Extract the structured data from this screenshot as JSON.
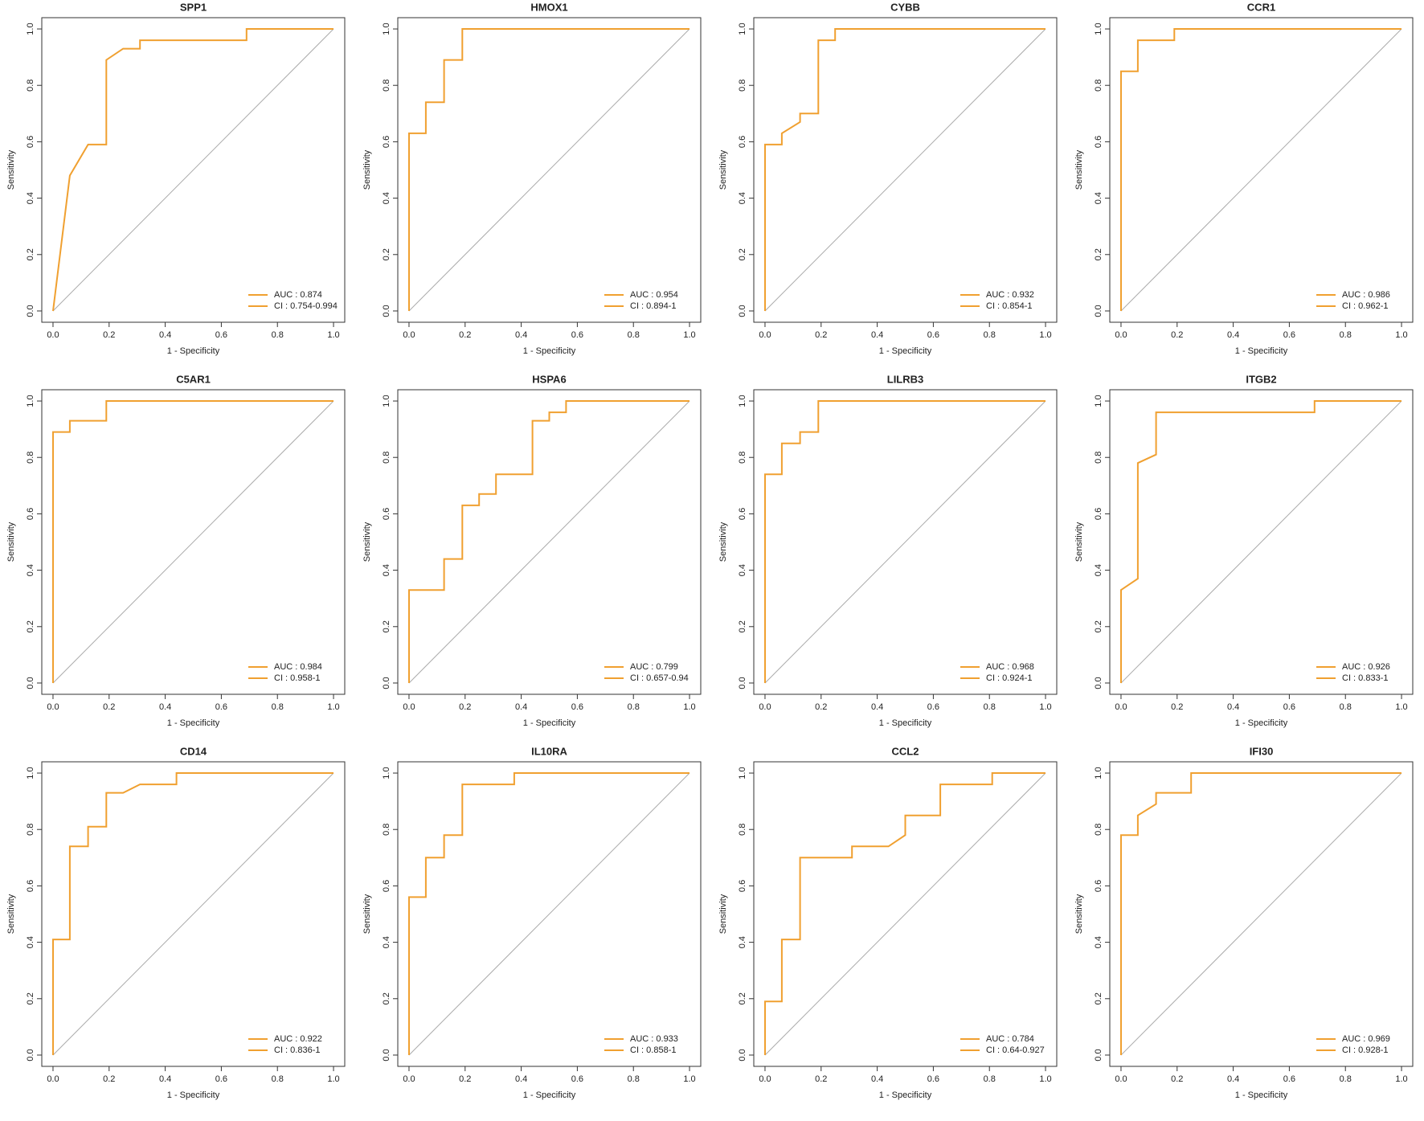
{
  "chart_data": [
    {
      "type": "line",
      "title": "SPP1",
      "xlabel": "1 - Specificity",
      "ylabel": "Sensitivity",
      "color": "#f0a030",
      "legend": [
        "AUC : 0.874",
        "CI : 0.754-0.994"
      ],
      "x": [
        0,
        0.06,
        0.125,
        0.19,
        0.19,
        0.25,
        0.31,
        0.31,
        0.69,
        0.69,
        1
      ],
      "values": [
        0,
        0.48,
        0.59,
        0.59,
        0.89,
        0.93,
        0.93,
        0.96,
        0.96,
        1,
        1
      ],
      "xlim": [
        -0.04,
        1.04
      ],
      "ylim": [
        -0.04,
        1.04
      ],
      "xticks": [
        {
          "value": 0,
          "label": "0.0"
        },
        {
          "value": 0.2,
          "label": "0.2"
        },
        {
          "value": 0.4,
          "label": "0.4"
        },
        {
          "value": 0.6,
          "label": "0.6"
        },
        {
          "value": 0.8,
          "label": "0.8"
        },
        {
          "value": 1,
          "label": "1.0"
        }
      ],
      "yticks": [
        {
          "value": 0,
          "label": "0.0"
        },
        {
          "value": 0.2,
          "label": "0.2"
        },
        {
          "value": 0.4,
          "label": "0.4"
        },
        {
          "value": 0.6,
          "label": "0.6"
        },
        {
          "value": 0.8,
          "label": "0.8"
        },
        {
          "value": 1,
          "label": "1.0"
        }
      ]
    },
    {
      "type": "line",
      "title": "HMOX1",
      "xlabel": "1 - Specificity",
      "ylabel": "Sensitivity",
      "color": "#f0a030",
      "legend": [
        "AUC : 0.954",
        "CI : 0.894-1"
      ],
      "x": [
        0,
        0,
        0.06,
        0.06,
        0.125,
        0.125,
        0.19,
        0.19,
        1
      ],
      "values": [
        0,
        0.63,
        0.63,
        0.74,
        0.74,
        0.89,
        0.89,
        1,
        1
      ],
      "xlim": [
        -0.04,
        1.04
      ],
      "ylim": [
        -0.04,
        1.04
      ],
      "xticks": [
        {
          "value": 0,
          "label": "0.0"
        },
        {
          "value": 0.2,
          "label": "0.2"
        },
        {
          "value": 0.4,
          "label": "0.4"
        },
        {
          "value": 0.6,
          "label": "0.6"
        },
        {
          "value": 0.8,
          "label": "0.8"
        },
        {
          "value": 1,
          "label": "1.0"
        }
      ],
      "yticks": [
        {
          "value": 0,
          "label": "0.0"
        },
        {
          "value": 0.2,
          "label": "0.2"
        },
        {
          "value": 0.4,
          "label": "0.4"
        },
        {
          "value": 0.6,
          "label": "0.6"
        },
        {
          "value": 0.8,
          "label": "0.8"
        },
        {
          "value": 1,
          "label": "1.0"
        }
      ]
    },
    {
      "type": "line",
      "title": "CYBB",
      "xlabel": "1 - Specificity",
      "ylabel": "Sensitivity",
      "color": "#f0a030",
      "legend": [
        "AUC : 0.932",
        "CI : 0.854-1"
      ],
      "x": [
        0,
        0,
        0.06,
        0.06,
        0.125,
        0.125,
        0.19,
        0.19,
        0.25,
        0.25,
        1
      ],
      "values": [
        0,
        0.59,
        0.59,
        0.63,
        0.67,
        0.7,
        0.7,
        0.96,
        0.96,
        1,
        1
      ],
      "xlim": [
        -0.04,
        1.04
      ],
      "ylim": [
        -0.04,
        1.04
      ],
      "xticks": [
        {
          "value": 0,
          "label": "0.0"
        },
        {
          "value": 0.2,
          "label": "0.2"
        },
        {
          "value": 0.4,
          "label": "0.4"
        },
        {
          "value": 0.6,
          "label": "0.6"
        },
        {
          "value": 0.8,
          "label": "0.8"
        },
        {
          "value": 1,
          "label": "1.0"
        }
      ],
      "yticks": [
        {
          "value": 0,
          "label": "0.0"
        },
        {
          "value": 0.2,
          "label": "0.2"
        },
        {
          "value": 0.4,
          "label": "0.4"
        },
        {
          "value": 0.6,
          "label": "0.6"
        },
        {
          "value": 0.8,
          "label": "0.8"
        },
        {
          "value": 1,
          "label": "1.0"
        }
      ]
    },
    {
      "type": "line",
      "title": "CCR1",
      "xlabel": "1 - Specificity",
      "ylabel": "Sensitivity",
      "color": "#f0a030",
      "legend": [
        "AUC : 0.986",
        "CI : 0.962-1"
      ],
      "x": [
        0,
        0,
        0.06,
        0.06,
        0.19,
        0.19,
        1
      ],
      "values": [
        0,
        0.85,
        0.85,
        0.96,
        0.96,
        1,
        1
      ],
      "xlim": [
        -0.04,
        1.04
      ],
      "ylim": [
        -0.04,
        1.04
      ],
      "xticks": [
        {
          "value": 0,
          "label": "0.0"
        },
        {
          "value": 0.2,
          "label": "0.2"
        },
        {
          "value": 0.4,
          "label": "0.4"
        },
        {
          "value": 0.6,
          "label": "0.6"
        },
        {
          "value": 0.8,
          "label": "0.8"
        },
        {
          "value": 1,
          "label": "1.0"
        }
      ],
      "yticks": [
        {
          "value": 0,
          "label": "0.0"
        },
        {
          "value": 0.2,
          "label": "0.2"
        },
        {
          "value": 0.4,
          "label": "0.4"
        },
        {
          "value": 0.6,
          "label": "0.6"
        },
        {
          "value": 0.8,
          "label": "0.8"
        },
        {
          "value": 1,
          "label": "1.0"
        }
      ]
    },
    {
      "type": "line",
      "title": "C5AR1",
      "xlabel": "1 - Specificity",
      "ylabel": "Sensitivity",
      "color": "#f0a030",
      "legend": [
        "AUC : 0.984",
        "CI : 0.958-1"
      ],
      "x": [
        0,
        0,
        0.06,
        0.06,
        0.19,
        0.19,
        1
      ],
      "values": [
        0,
        0.89,
        0.89,
        0.93,
        0.93,
        1,
        1
      ],
      "xlim": [
        -0.04,
        1.04
      ],
      "ylim": [
        -0.04,
        1.04
      ],
      "xticks": [
        {
          "value": 0,
          "label": "0.0"
        },
        {
          "value": 0.2,
          "label": "0.2"
        },
        {
          "value": 0.4,
          "label": "0.4"
        },
        {
          "value": 0.6,
          "label": "0.6"
        },
        {
          "value": 0.8,
          "label": "0.8"
        },
        {
          "value": 1,
          "label": "1.0"
        }
      ],
      "yticks": [
        {
          "value": 0,
          "label": "0.0"
        },
        {
          "value": 0.2,
          "label": "0.2"
        },
        {
          "value": 0.4,
          "label": "0.4"
        },
        {
          "value": 0.6,
          "label": "0.6"
        },
        {
          "value": 0.8,
          "label": "0.8"
        },
        {
          "value": 1,
          "label": "1.0"
        }
      ]
    },
    {
      "type": "line",
      "title": "HSPA6",
      "xlabel": "1 - Specificity",
      "ylabel": "Sensitivity",
      "color": "#f0a030",
      "legend": [
        "AUC : 0.799",
        "CI : 0.657-0.94"
      ],
      "x": [
        0,
        0,
        0.125,
        0.125,
        0.19,
        0.19,
        0.25,
        0.25,
        0.31,
        0.31,
        0.44,
        0.44,
        0.5,
        0.5,
        0.56,
        0.56,
        1
      ],
      "values": [
        0,
        0.33,
        0.33,
        0.44,
        0.44,
        0.63,
        0.63,
        0.67,
        0.67,
        0.74,
        0.74,
        0.93,
        0.93,
        0.96,
        0.96,
        1,
        1
      ],
      "xlim": [
        -0.04,
        1.04
      ],
      "ylim": [
        -0.04,
        1.04
      ],
      "xticks": [
        {
          "value": 0,
          "label": "0.0"
        },
        {
          "value": 0.2,
          "label": "0.2"
        },
        {
          "value": 0.4,
          "label": "0.4"
        },
        {
          "value": 0.6,
          "label": "0.6"
        },
        {
          "value": 0.8,
          "label": "0.8"
        },
        {
          "value": 1,
          "label": "1.0"
        }
      ],
      "yticks": [
        {
          "value": 0,
          "label": "0.0"
        },
        {
          "value": 0.2,
          "label": "0.2"
        },
        {
          "value": 0.4,
          "label": "0.4"
        },
        {
          "value": 0.6,
          "label": "0.6"
        },
        {
          "value": 0.8,
          "label": "0.8"
        },
        {
          "value": 1,
          "label": "1.0"
        }
      ]
    },
    {
      "type": "line",
      "title": "LILRB3",
      "xlabel": "1 - Specificity",
      "ylabel": "Sensitivity",
      "color": "#f0a030",
      "legend": [
        "AUC : 0.968",
        "CI : 0.924-1"
      ],
      "x": [
        0,
        0,
        0.06,
        0.06,
        0.125,
        0.125,
        0.19,
        0.19,
        1
      ],
      "values": [
        0,
        0.74,
        0.74,
        0.85,
        0.85,
        0.89,
        0.89,
        1,
        1
      ],
      "xlim": [
        -0.04,
        1.04
      ],
      "ylim": [
        -0.04,
        1.04
      ],
      "xticks": [
        {
          "value": 0,
          "label": "0.0"
        },
        {
          "value": 0.2,
          "label": "0.2"
        },
        {
          "value": 0.4,
          "label": "0.4"
        },
        {
          "value": 0.6,
          "label": "0.6"
        },
        {
          "value": 0.8,
          "label": "0.8"
        },
        {
          "value": 1,
          "label": "1.0"
        }
      ],
      "yticks": [
        {
          "value": 0,
          "label": "0.0"
        },
        {
          "value": 0.2,
          "label": "0.2"
        },
        {
          "value": 0.4,
          "label": "0.4"
        },
        {
          "value": 0.6,
          "label": "0.6"
        },
        {
          "value": 0.8,
          "label": "0.8"
        },
        {
          "value": 1,
          "label": "1.0"
        }
      ]
    },
    {
      "type": "line",
      "title": "ITGB2",
      "xlabel": "1 - Specificity",
      "ylabel": "Sensitivity",
      "color": "#f0a030",
      "legend": [
        "AUC : 0.926",
        "CI : 0.833-1"
      ],
      "x": [
        0,
        0,
        0.06,
        0.06,
        0.125,
        0.125,
        0.69,
        0.69,
        1
      ],
      "values": [
        0,
        0.33,
        0.37,
        0.78,
        0.81,
        0.96,
        0.96,
        1,
        1
      ],
      "xlim": [
        -0.04,
        1.04
      ],
      "ylim": [
        -0.04,
        1.04
      ],
      "xticks": [
        {
          "value": 0,
          "label": "0.0"
        },
        {
          "value": 0.2,
          "label": "0.2"
        },
        {
          "value": 0.4,
          "label": "0.4"
        },
        {
          "value": 0.6,
          "label": "0.6"
        },
        {
          "value": 0.8,
          "label": "0.8"
        },
        {
          "value": 1,
          "label": "1.0"
        }
      ],
      "yticks": [
        {
          "value": 0,
          "label": "0.0"
        },
        {
          "value": 0.2,
          "label": "0.2"
        },
        {
          "value": 0.4,
          "label": "0.4"
        },
        {
          "value": 0.6,
          "label": "0.6"
        },
        {
          "value": 0.8,
          "label": "0.8"
        },
        {
          "value": 1,
          "label": "1.0"
        }
      ]
    },
    {
      "type": "line",
      "title": "CD14",
      "xlabel": "1 - Specificity",
      "ylabel": "Sensitivity",
      "color": "#f0a030",
      "legend": [
        "AUC : 0.922",
        "CI : 0.836-1"
      ],
      "x": [
        0,
        0,
        0.06,
        0.06,
        0.125,
        0.125,
        0.19,
        0.19,
        0.25,
        0.31,
        0.44,
        0.44,
        1
      ],
      "values": [
        0,
        0.41,
        0.41,
        0.74,
        0.74,
        0.81,
        0.81,
        0.93,
        0.93,
        0.96,
        0.96,
        1,
        1
      ],
      "xlim": [
        -0.04,
        1.04
      ],
      "ylim": [
        -0.04,
        1.04
      ],
      "xticks": [
        {
          "value": 0,
          "label": "0.0"
        },
        {
          "value": 0.2,
          "label": "0.2"
        },
        {
          "value": 0.4,
          "label": "0.4"
        },
        {
          "value": 0.6,
          "label": "0.6"
        },
        {
          "value": 0.8,
          "label": "0.8"
        },
        {
          "value": 1,
          "label": "1.0"
        }
      ],
      "yticks": [
        {
          "value": 0,
          "label": "0.0"
        },
        {
          "value": 0.2,
          "label": "0.2"
        },
        {
          "value": 0.4,
          "label": "0.4"
        },
        {
          "value": 0.6,
          "label": "0.6"
        },
        {
          "value": 0.8,
          "label": "0.8"
        },
        {
          "value": 1,
          "label": "1.0"
        }
      ]
    },
    {
      "type": "line",
      "title": "IL10RA",
      "xlabel": "1 - Specificity",
      "ylabel": "Sensitivity",
      "color": "#f0a030",
      "legend": [
        "AUC : 0.933",
        "CI : 0.858-1"
      ],
      "x": [
        0,
        0,
        0.06,
        0.06,
        0.125,
        0.125,
        0.19,
        0.19,
        0.375,
        0.375,
        1
      ],
      "values": [
        0,
        0.56,
        0.56,
        0.7,
        0.7,
        0.78,
        0.78,
        0.96,
        0.96,
        1,
        1
      ],
      "xlim": [
        -0.04,
        1.04
      ],
      "ylim": [
        -0.04,
        1.04
      ],
      "xticks": [
        {
          "value": 0,
          "label": "0.0"
        },
        {
          "value": 0.2,
          "label": "0.2"
        },
        {
          "value": 0.4,
          "label": "0.4"
        },
        {
          "value": 0.6,
          "label": "0.6"
        },
        {
          "value": 0.8,
          "label": "0.8"
        },
        {
          "value": 1,
          "label": "1.0"
        }
      ],
      "yticks": [
        {
          "value": 0,
          "label": "0.0"
        },
        {
          "value": 0.2,
          "label": "0.2"
        },
        {
          "value": 0.4,
          "label": "0.4"
        },
        {
          "value": 0.6,
          "label": "0.6"
        },
        {
          "value": 0.8,
          "label": "0.8"
        },
        {
          "value": 1,
          "label": "1.0"
        }
      ]
    },
    {
      "type": "line",
      "title": "CCL2",
      "xlabel": "1 - Specificity",
      "ylabel": "Sensitivity",
      "color": "#f0a030",
      "legend": [
        "AUC : 0.784",
        "CI : 0.64-0.927"
      ],
      "x": [
        0,
        0,
        0.06,
        0.06,
        0.125,
        0.125,
        0.31,
        0.31,
        0.44,
        0.5,
        0.5,
        0.625,
        0.625,
        0.81,
        0.81,
        1
      ],
      "values": [
        0,
        0.19,
        0.19,
        0.41,
        0.41,
        0.7,
        0.7,
        0.74,
        0.74,
        0.78,
        0.85,
        0.85,
        0.96,
        0.96,
        1,
        1
      ],
      "xlim": [
        -0.04,
        1.04
      ],
      "ylim": [
        -0.04,
        1.04
      ],
      "xticks": [
        {
          "value": 0,
          "label": "0.0"
        },
        {
          "value": 0.2,
          "label": "0.2"
        },
        {
          "value": 0.4,
          "label": "0.4"
        },
        {
          "value": 0.6,
          "label": "0.6"
        },
        {
          "value": 0.8,
          "label": "0.8"
        },
        {
          "value": 1,
          "label": "1.0"
        }
      ],
      "yticks": [
        {
          "value": 0,
          "label": "0.0"
        },
        {
          "value": 0.2,
          "label": "0.2"
        },
        {
          "value": 0.4,
          "label": "0.4"
        },
        {
          "value": 0.6,
          "label": "0.6"
        },
        {
          "value": 0.8,
          "label": "0.8"
        },
        {
          "value": 1,
          "label": "1.0"
        }
      ]
    },
    {
      "type": "line",
      "title": "IFI30",
      "xlabel": "1 - Specificity",
      "ylabel": "Sensitivity",
      "color": "#f0a030",
      "legend": [
        "AUC : 0.969",
        "CI : 0.928-1"
      ],
      "x": [
        0,
        0,
        0.06,
        0.06,
        0.125,
        0.125,
        0.25,
        0.25,
        1
      ],
      "values": [
        0,
        0.78,
        0.78,
        0.85,
        0.89,
        0.93,
        0.93,
        1,
        1
      ],
      "xlim": [
        -0.04,
        1.04
      ],
      "ylim": [
        -0.04,
        1.04
      ],
      "xticks": [
        {
          "value": 0,
          "label": "0.0"
        },
        {
          "value": 0.2,
          "label": "0.2"
        },
        {
          "value": 0.4,
          "label": "0.4"
        },
        {
          "value": 0.6,
          "label": "0.6"
        },
        {
          "value": 0.8,
          "label": "0.8"
        },
        {
          "value": 1,
          "label": "1.0"
        }
      ],
      "yticks": [
        {
          "value": 0,
          "label": "0.0"
        },
        {
          "value": 0.2,
          "label": "0.2"
        },
        {
          "value": 0.4,
          "label": "0.4"
        },
        {
          "value": 0.6,
          "label": "0.6"
        },
        {
          "value": 0.8,
          "label": "0.8"
        },
        {
          "value": 1,
          "label": "1.0"
        }
      ]
    }
  ]
}
